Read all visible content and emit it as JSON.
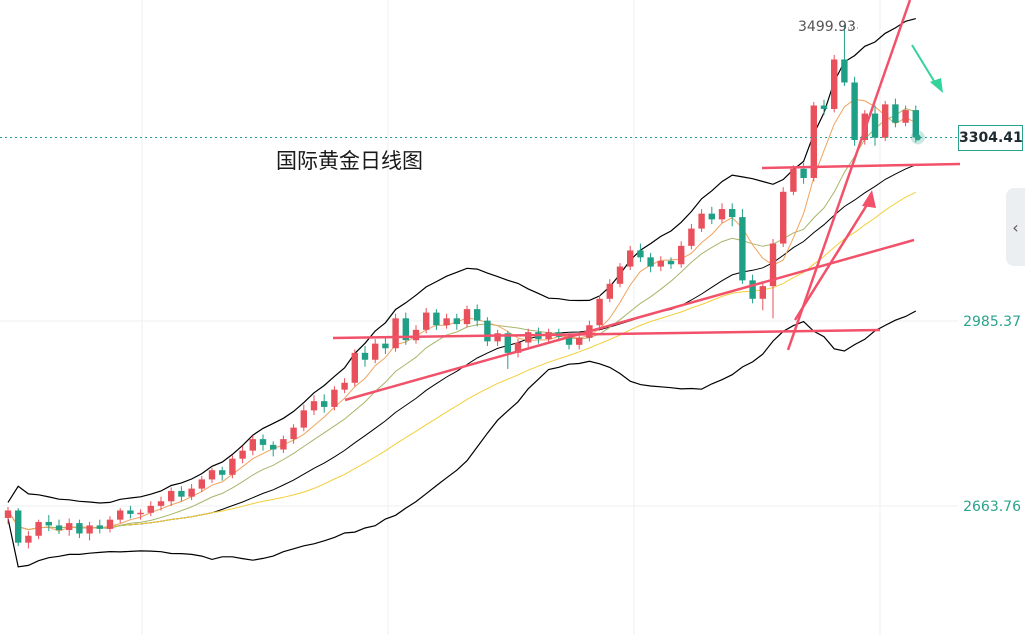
{
  "title": "国际黄金日线图",
  "price_labels": [
    "2985.37",
    "2663.76"
  ],
  "current_price": "3304.41",
  "high_label": "3499.93",
  "nav_icon": "chevron-left-icon",
  "colors": {
    "up": "#e8505b",
    "down": "#1f9f86",
    "trend": "#f2516a",
    "arrow_down": "#34d399",
    "ma_short": "#f0a35e",
    "ma_mid": "#a9b56b",
    "ma_long": "#f3cf3a",
    "boll": "#000000",
    "price_line": "#2aa38d"
  },
  "chart_data": {
    "type": "candlestick",
    "title": "国际黄金日线图",
    "y_ticks": [
      2663.76,
      2985.37
    ],
    "ylim": [
      2520,
      3620
    ],
    "current_price": 3304.41,
    "high": 3499.93,
    "candles": [
      [
        2643,
        2656,
        2633,
        2662
      ],
      [
        2656,
        2600,
        2594,
        2660
      ],
      [
        2600,
        2612,
        2590,
        2620
      ],
      [
        2612,
        2636,
        2606,
        2640
      ],
      [
        2636,
        2630,
        2620,
        2648
      ],
      [
        2630,
        2622,
        2615,
        2640
      ],
      [
        2622,
        2634,
        2612,
        2642
      ],
      [
        2634,
        2616,
        2608,
        2640
      ],
      [
        2616,
        2630,
        2604,
        2636
      ],
      [
        2630,
        2624,
        2616,
        2640
      ],
      [
        2624,
        2640,
        2618,
        2646
      ],
      [
        2640,
        2656,
        2634,
        2660
      ],
      [
        2656,
        2650,
        2642,
        2664
      ],
      [
        2650,
        2652,
        2640,
        2658
      ],
      [
        2652,
        2664,
        2646,
        2672
      ],
      [
        2664,
        2672,
        2656,
        2680
      ],
      [
        2672,
        2690,
        2664,
        2696
      ],
      [
        2690,
        2680,
        2672,
        2698
      ],
      [
        2680,
        2694,
        2674,
        2702
      ],
      [
        2694,
        2710,
        2688,
        2716
      ],
      [
        2710,
        2726,
        2704,
        2730
      ],
      [
        2726,
        2718,
        2708,
        2732
      ],
      [
        2718,
        2746,
        2712,
        2752
      ],
      [
        2746,
        2760,
        2738,
        2768
      ],
      [
        2760,
        2780,
        2752,
        2786
      ],
      [
        2780,
        2770,
        2760,
        2788
      ],
      [
        2770,
        2762,
        2750,
        2776
      ],
      [
        2762,
        2780,
        2756,
        2786
      ],
      [
        2780,
        2800,
        2772,
        2806
      ],
      [
        2800,
        2830,
        2794,
        2840
      ],
      [
        2830,
        2846,
        2822,
        2856
      ],
      [
        2846,
        2836,
        2826,
        2858
      ],
      [
        2836,
        2866,
        2830,
        2872
      ],
      [
        2866,
        2878,
        2860,
        2886
      ],
      [
        2878,
        2930,
        2872,
        2936
      ],
      [
        2930,
        2918,
        2906,
        2942
      ],
      [
        2918,
        2946,
        2912,
        2954
      ],
      [
        2946,
        2938,
        2928,
        2956
      ],
      [
        2938,
        2990,
        2932,
        2998
      ],
      [
        2990,
        2952,
        2944,
        3000
      ],
      [
        2952,
        2970,
        2946,
        2978
      ],
      [
        2970,
        3000,
        2964,
        3008
      ],
      [
        3000,
        2978,
        2970,
        3006
      ],
      [
        2978,
        2990,
        2972,
        2998
      ],
      [
        2990,
        2980,
        2970,
        2998
      ],
      [
        2980,
        3006,
        2974,
        3012
      ],
      [
        3006,
        2986,
        2976,
        3014
      ],
      [
        2986,
        2950,
        2942,
        2992
      ],
      [
        2950,
        2964,
        2942,
        2970
      ],
      [
        2964,
        2930,
        2902,
        2968
      ],
      [
        2930,
        2948,
        2922,
        2954
      ],
      [
        2948,
        2966,
        2940,
        2972
      ],
      [
        2966,
        2954,
        2946,
        2974
      ],
      [
        2954,
        2966,
        2946,
        2972
      ],
      [
        2966,
        2958,
        2950,
        2972
      ],
      [
        2958,
        2944,
        2936,
        2966
      ],
      [
        2944,
        2956,
        2936,
        2962
      ],
      [
        2956,
        2978,
        2950,
        2986
      ],
      [
        2978,
        3024,
        2972,
        3030
      ],
      [
        3024,
        3050,
        3018,
        3058
      ],
      [
        3050,
        3080,
        3044,
        3086
      ],
      [
        3080,
        3108,
        3074,
        3116
      ],
      [
        3108,
        3096,
        3088,
        3120
      ],
      [
        3096,
        3080,
        3070,
        3104
      ],
      [
        3080,
        3090,
        3072,
        3098
      ],
      [
        3090,
        3084,
        3076,
        3096
      ],
      [
        3084,
        3116,
        3078,
        3124
      ],
      [
        3116,
        3146,
        3110,
        3154
      ],
      [
        3146,
        3172,
        3140,
        3180
      ],
      [
        3172,
        3162,
        3154,
        3184
      ],
      [
        3162,
        3180,
        3156,
        3190
      ],
      [
        3180,
        3166,
        3150,
        3190
      ],
      [
        3166,
        3056,
        3050,
        3180
      ],
      [
        3056,
        3024,
        3016,
        3066
      ],
      [
        3024,
        3046,
        3004,
        3054
      ],
      [
        3046,
        3120,
        2990,
        3128
      ],
      [
        3120,
        3210,
        3114,
        3218
      ],
      [
        3210,
        3250,
        3204,
        3256
      ],
      [
        3250,
        3234,
        3224,
        3260
      ],
      [
        3234,
        3360,
        3228,
        3366
      ],
      [
        3360,
        3354,
        3344,
        3370
      ],
      [
        3354,
        3440,
        3348,
        3448
      ],
      [
        3440,
        3400,
        3394,
        3499.93
      ],
      [
        3400,
        3300,
        3290,
        3410
      ],
      [
        3300,
        3346,
        3292,
        3352
      ],
      [
        3346,
        3304,
        3290,
        3360
      ],
      [
        3304,
        3362,
        3298,
        3368
      ],
      [
        3362,
        3330,
        3322,
        3372
      ],
      [
        3330,
        3352,
        3324,
        3360
      ],
      [
        3352,
        3304.41,
        3296,
        3360
      ]
    ]
  }
}
